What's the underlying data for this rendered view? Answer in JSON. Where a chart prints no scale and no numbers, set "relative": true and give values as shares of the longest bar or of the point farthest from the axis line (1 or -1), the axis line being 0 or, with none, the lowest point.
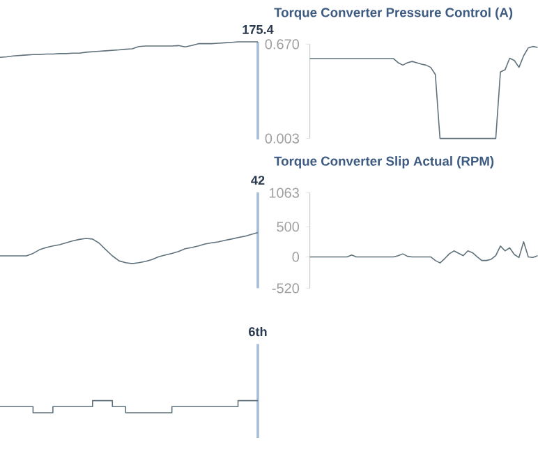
{
  "chart_data": [
    {
      "type": "line",
      "relative": true,
      "tick_labels": false,
      "color": "#5f717b",
      "categories": [
        null,
        null,
        null,
        null,
        null,
        null,
        null,
        null,
        null,
        null,
        null,
        null,
        null,
        null,
        null,
        null,
        null,
        null,
        null,
        null,
        null,
        null,
        null,
        null,
        null,
        null,
        null,
        null,
        null,
        null,
        null,
        null,
        null,
        null,
        null,
        null,
        null,
        null,
        null,
        null
      ],
      "values": [
        0,
        0.03,
        0.09,
        0.12,
        0.15,
        0.18,
        0.18,
        0.21,
        0.21,
        0.24,
        0.24,
        0.27,
        0.27,
        0.33,
        0.36,
        0.39,
        0.42,
        0.45,
        0.48,
        0.52,
        0.55,
        0.7,
        0.73,
        0.73,
        0.73,
        0.73,
        0.73,
        0.76,
        0.67,
        0.76,
        0.88,
        0.88,
        0.88,
        0.91,
        0.94,
        0.97,
        1,
        1,
        1,
        1
      ],
      "annotations": [
        "175.4"
      ]
    },
    {
      "type": "line",
      "title": "Torque Converter Pressure Control (A)",
      "tick_labels": "y",
      "color": "#5f717b",
      "categories": [
        null,
        null,
        null,
        null,
        null,
        null,
        null,
        null,
        null,
        null,
        null,
        null,
        null,
        null,
        null,
        null,
        null,
        null,
        null,
        null,
        null,
        null,
        null,
        null,
        null,
        null,
        null,
        null,
        null,
        null,
        null,
        null,
        null,
        null,
        null,
        null,
        null,
        null,
        null,
        null,
        null,
        null,
        null,
        null,
        null,
        null,
        null,
        null,
        null,
        null
      ],
      "values": [
        0.568,
        0.568,
        0.568,
        0.568,
        0.568,
        0.568,
        0.568,
        0.568,
        0.568,
        0.568,
        0.568,
        0.568,
        0.568,
        0.568,
        0.568,
        0.568,
        0.568,
        0.568,
        0.568,
        0.539,
        0.522,
        0.539,
        0.548,
        0.539,
        0.529,
        0.522,
        0.506,
        0.456,
        0.003,
        0.003,
        0.003,
        0.003,
        0.003,
        0.003,
        0.003,
        0.003,
        0.003,
        0.003,
        0.003,
        0.003,
        0.003,
        0.473,
        0.489,
        0.571,
        0.555,
        0.506,
        0.588,
        0.644,
        0.654,
        0.647
      ],
      "ylim": [
        0.003,
        0.67
      ],
      "yticks": [
        0.003,
        {
          "value": 0.67,
          "label": "0.670"
        }
      ]
    },
    {
      "type": "line",
      "relative": true,
      "tick_labels": false,
      "color": "#5f717b",
      "categories": [
        null,
        null,
        null,
        null,
        null,
        null,
        null,
        null,
        null,
        null,
        null,
        null,
        null,
        null,
        null,
        null,
        null,
        null,
        null,
        null,
        null,
        null,
        null,
        null,
        null,
        null,
        null,
        null,
        null,
        null,
        null,
        null,
        null,
        null,
        null,
        null,
        null,
        null,
        null,
        null
      ],
      "values": [
        0.25,
        0.25,
        0.25,
        0.25,
        0.25,
        0.33,
        0.45,
        0.52,
        0.57,
        0.61,
        0.67,
        0.73,
        0.78,
        0.81,
        0.79,
        0.66,
        0.45,
        0.25,
        0.09,
        0.03,
        0,
        0.03,
        0.07,
        0.13,
        0.22,
        0.28,
        0.33,
        0.39,
        0.48,
        0.52,
        0.57,
        0.63,
        0.67,
        0.7,
        0.75,
        0.79,
        0.84,
        0.88,
        0.94,
        1
      ],
      "annotations": [
        "42"
      ]
    },
    {
      "type": "line",
      "title": "Torque Converter Slip Actual (RPM)",
      "tick_labels": "y",
      "color": "#5f717b",
      "categories": [
        null,
        null,
        null,
        null,
        null,
        null,
        null,
        null,
        null,
        null,
        null,
        null,
        null,
        null,
        null,
        null,
        null,
        null,
        null,
        null,
        null,
        null,
        null,
        null,
        null,
        null,
        null,
        null,
        null,
        null,
        null,
        null,
        null,
        null,
        null,
        null,
        null,
        null,
        null,
        null,
        null,
        null,
        null,
        null,
        null,
        null,
        null,
        null,
        null,
        null
      ],
      "values": [
        0,
        0,
        0,
        0,
        0,
        0,
        0,
        0,
        0,
        30,
        0,
        0,
        0,
        0,
        0,
        0,
        0,
        0,
        0,
        20,
        50,
        10,
        0,
        0,
        0,
        0,
        0,
        -60,
        -100,
        -30,
        50,
        100,
        60,
        20,
        100,
        70,
        0,
        -60,
        -60,
        -40,
        20,
        180,
        100,
        150,
        40,
        -10,
        250,
        0,
        -10,
        20
      ],
      "ylim": [
        -520,
        1063
      ],
      "yticks": [
        -520,
        0,
        500,
        1063
      ]
    },
    {
      "type": "step",
      "relative": true,
      "tick_labels": false,
      "color": "#5f717b",
      "categories": [
        null,
        null,
        null,
        null,
        null,
        null,
        null,
        null,
        null,
        null,
        null,
        null,
        null,
        null,
        null,
        null,
        null,
        null,
        null,
        null,
        null,
        null,
        null,
        null,
        null,
        null,
        null,
        null,
        null,
        null,
        null,
        null,
        null,
        null,
        null,
        null,
        null,
        null,
        null,
        null
      ],
      "values": [
        0.5,
        0.5,
        0.5,
        0.5,
        0.5,
        0,
        0,
        0,
        0.5,
        0.5,
        0.5,
        0.5,
        0.5,
        0.5,
        1,
        1,
        1,
        0.5,
        0.5,
        0,
        0,
        0,
        0,
        0,
        0,
        0,
        0.5,
        0.5,
        0.5,
        0.5,
        0.5,
        0.5,
        0.5,
        0.5,
        0.5,
        0.5,
        1,
        1,
        1,
        1
      ],
      "annotations": [
        "6th"
      ]
    }
  ]
}
